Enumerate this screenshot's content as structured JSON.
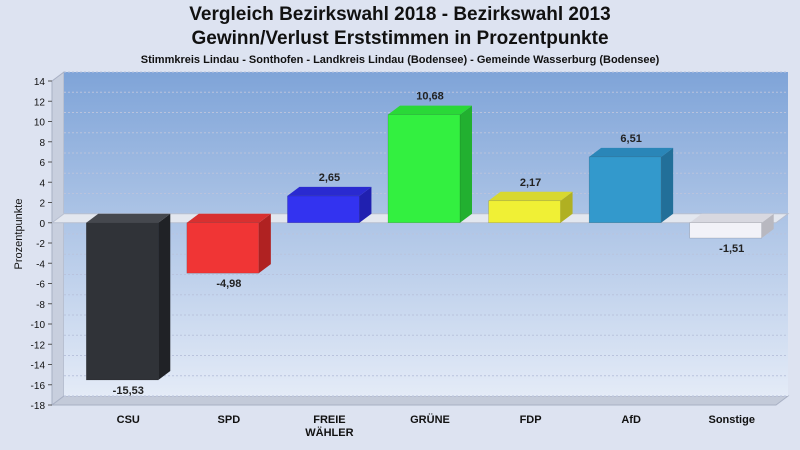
{
  "header": {
    "title_line1": "Vergleich Bezirkswahl 2018 - Bezirkswahl 2013",
    "title_line2": "Gewinn/Verlust Erststimmen in Prozentpunkte",
    "subtitle": "Stimmkreis Lindau - Sonthofen - Landkreis Lindau (Bodensee) - Gemeinde Wasserburg (Bodensee)"
  },
  "chart_data": {
    "type": "bar",
    "title": "Vergleich Bezirkswahl 2018 - Bezirkswahl 2013",
    "subtitle": "Gewinn/Verlust Erststimmen in Prozentpunkte",
    "ylabel": "Prozentpunkte",
    "ylim": [
      -18,
      14
    ],
    "yticks": [
      14,
      12,
      10,
      8,
      6,
      4,
      2,
      0,
      -2,
      -4,
      -6,
      -8,
      -10,
      -12,
      -14,
      -16,
      -18
    ],
    "categories": [
      {
        "lines": [
          "CSU"
        ],
        "value": -15.53,
        "label": "-15,53",
        "color": "#303338",
        "side": "#202226",
        "top": "#45484e"
      },
      {
        "lines": [
          "SPD"
        ],
        "value": -4.98,
        "label": "-4,98",
        "color": "#f03535",
        "side": "#b02222",
        "top": "#d83030"
      },
      {
        "lines": [
          "FREIE",
          "WÄHLER"
        ],
        "value": 2.65,
        "label": "2,65",
        "color": "#3333f0",
        "side": "#2020b0",
        "top": "#2a2ad0"
      },
      {
        "lines": [
          "GRÜNE"
        ],
        "value": 10.68,
        "label": "10,68",
        "color": "#33f040",
        "side": "#22b030",
        "top": "#2ad838"
      },
      {
        "lines": [
          "FDP"
        ],
        "value": 2.17,
        "label": "2,17",
        "color": "#f0f035",
        "side": "#b0b022",
        "top": "#d8d830"
      },
      {
        "lines": [
          "AfD"
        ],
        "value": 6.51,
        "label": "6,51",
        "color": "#3399cc",
        "side": "#226f99",
        "top": "#2a86b8"
      },
      {
        "lines": [
          "Sonstige"
        ],
        "value": -1.51,
        "label": "-1,51",
        "color": "#f2f2f8",
        "side": "#b8b8c0",
        "top": "#d8d8e0"
      }
    ],
    "grid": true,
    "legend": "none",
    "colors": {
      "plot_top": "#7fa4d8",
      "plot_bottom": "#e4ebf7",
      "gridline": "#b9c3dd"
    }
  }
}
